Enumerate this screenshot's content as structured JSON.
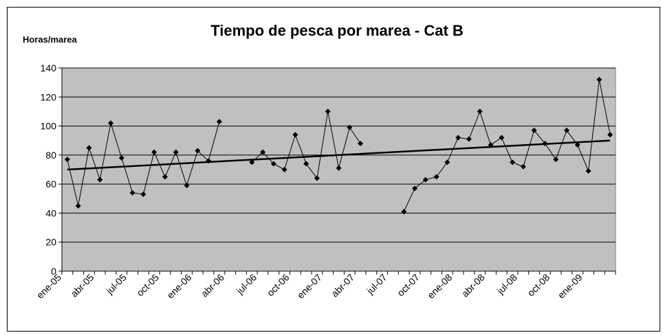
{
  "chart_data": {
    "type": "line",
    "title": "Tiempo de pesca por marea - Cat B",
    "ylabel": "Horas/marea",
    "categories": [
      "ene-05",
      null,
      null,
      "abr-05",
      null,
      null,
      "jul-05",
      null,
      null,
      "oct-05",
      null,
      null,
      "ene-06",
      null,
      null,
      "abr-06",
      null,
      null,
      "jul-06",
      null,
      null,
      "oct-06",
      null,
      null,
      "ene-07",
      null,
      null,
      "abr-07",
      null,
      null,
      "jul-07",
      null,
      null,
      "oct-07",
      null,
      null,
      "ene-08",
      null,
      null,
      "abr-08",
      null,
      null,
      "jul-08",
      null,
      null,
      "oct-08",
      null,
      null,
      "ene-09",
      null,
      null
    ],
    "series": [
      {
        "color": "#000000",
        "values": [
          77,
          45,
          85,
          63,
          102,
          78,
          54,
          53,
          82,
          65,
          82,
          59,
          83,
          76,
          103,
          null,
          null,
          75,
          82,
          74,
          70,
          94,
          74,
          64,
          110,
          71,
          99,
          88,
          null,
          null,
          null,
          41,
          57,
          63,
          65,
          75,
          92,
          91,
          110,
          87,
          92,
          75,
          72,
          97,
          88,
          77,
          97,
          87,
          69,
          132,
          94
        ]
      }
    ],
    "trendline": [
      70,
      90
    ],
    "ylim": [
      0,
      140
    ],
    "yticks": [
      0,
      20,
      40,
      60,
      80,
      100,
      120,
      140
    ],
    "grid": true,
    "plot_color": "#c0c0c0"
  }
}
